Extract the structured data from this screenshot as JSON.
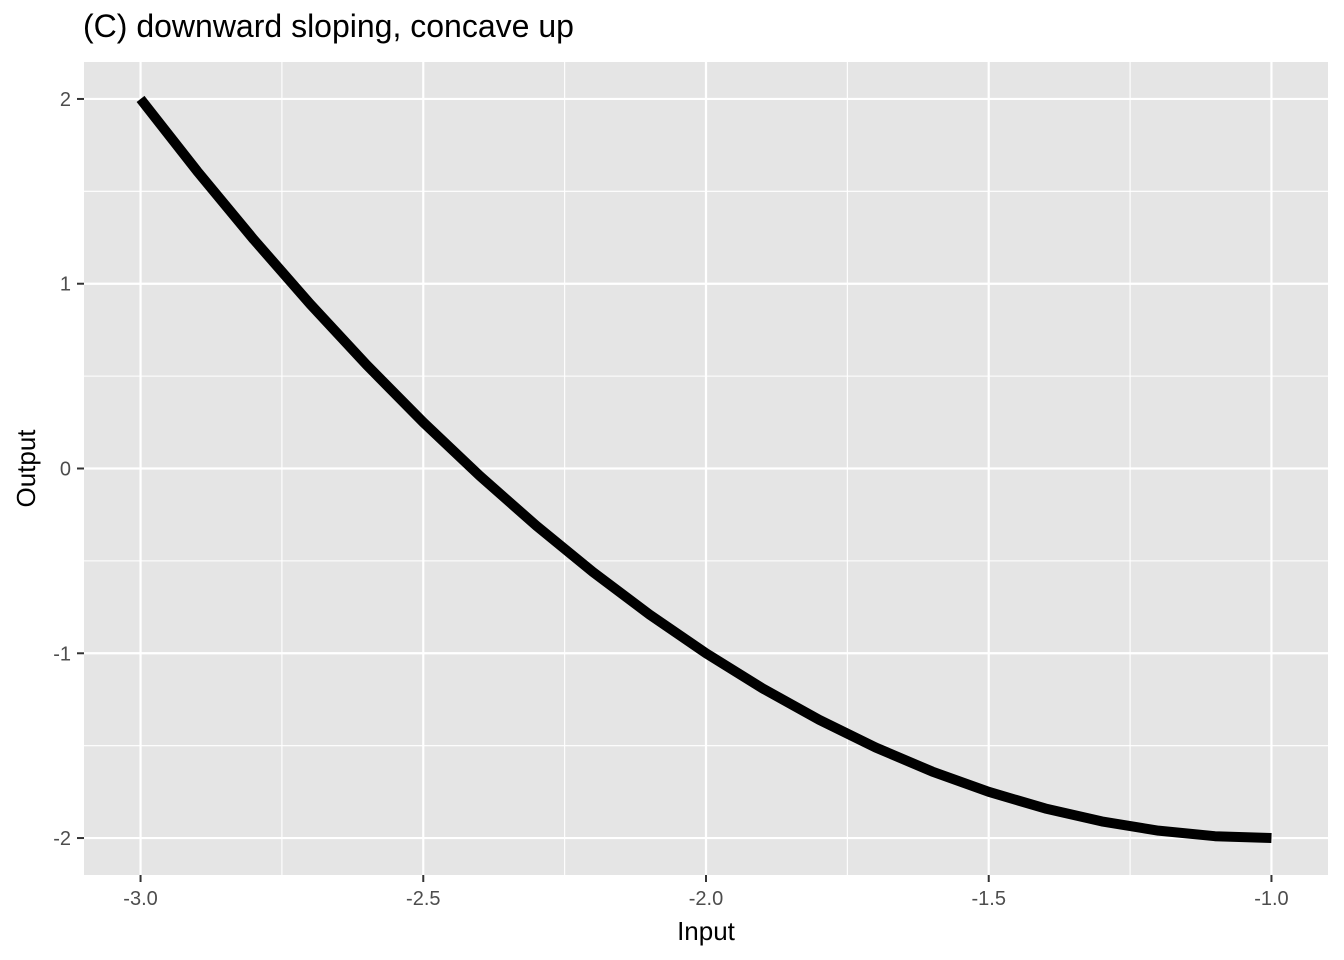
{
  "chart_data": {
    "type": "line",
    "title": "(C) downward sloping, concave up",
    "xlabel": "Input",
    "ylabel": "Output",
    "xlim": [
      -3.1,
      -0.9
    ],
    "ylim": [
      -2.2,
      2.2
    ],
    "x_ticks": [
      -3.0,
      -2.5,
      -2.0,
      -1.5,
      -1.0
    ],
    "x_tick_labels": [
      "-3.0",
      "-2.5",
      "-2.0",
      "-1.5",
      "-1.0"
    ],
    "y_ticks": [
      -2,
      -1,
      0,
      1,
      2
    ],
    "y_tick_labels": [
      "-2",
      "-1",
      "0",
      "1",
      "2"
    ],
    "grid": true,
    "panel_background": "#e5e5e5",
    "grid_color": "#ffffff",
    "line_color": "#000000",
    "series": [
      {
        "x": [
          -3.0,
          -2.9,
          -2.8,
          -2.7,
          -2.6,
          -2.5,
          -2.4,
          -2.3,
          -2.2,
          -2.1,
          -2.0,
          -1.9,
          -1.8,
          -1.7,
          -1.6,
          -1.5,
          -1.4,
          -1.3,
          -1.2,
          -1.1,
          -1.0
        ],
        "values": [
          2.0,
          1.61,
          1.24,
          0.89,
          0.56,
          0.25,
          -0.04,
          -0.31,
          -0.56,
          -0.79,
          -1.0,
          -1.19,
          -1.36,
          -1.51,
          -1.64,
          -1.75,
          -1.84,
          -1.91,
          -1.96,
          -1.99,
          -2.0
        ]
      }
    ]
  }
}
